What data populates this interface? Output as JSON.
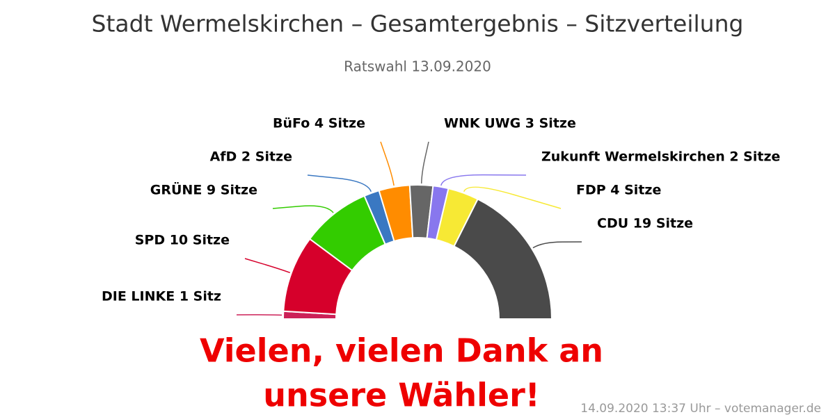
{
  "chart_data": {
    "type": "halfdonut",
    "title": "Stadt Wermelskirchen – Gesamtergebnis – Sitzverteilung",
    "subtitle": "Ratswahl 13.09.2020",
    "values": [
      1,
      10,
      9,
      2,
      4,
      3,
      2,
      4,
      19
    ],
    "value_labels": [
      "DIE LINKE 1 Sitz",
      "SPD 10 Sitze",
      "GRÜNE 9 Sitze",
      "AfD 2 Sitze",
      "BüFo 4 Sitze",
      "WNK UWG 3 Sitze",
      "Zukunft Wermelskirchen 2 Sitze",
      "FDP 4 Sitze",
      "CDU 19 Sitze"
    ],
    "colors": [
      "#cc2158",
      "#d6002b",
      "#33cc00",
      "#3a78c2",
      "#ff8c00",
      "#666666",
      "#8877ee",
      "#f7e934",
      "#4a4a4a"
    ],
    "annotation": [
      "Vielen, vielen Dank an",
      "unsere Wähler!"
    ],
    "credit": "14.09.2020 13:37 Uhr – votemanager.de"
  }
}
